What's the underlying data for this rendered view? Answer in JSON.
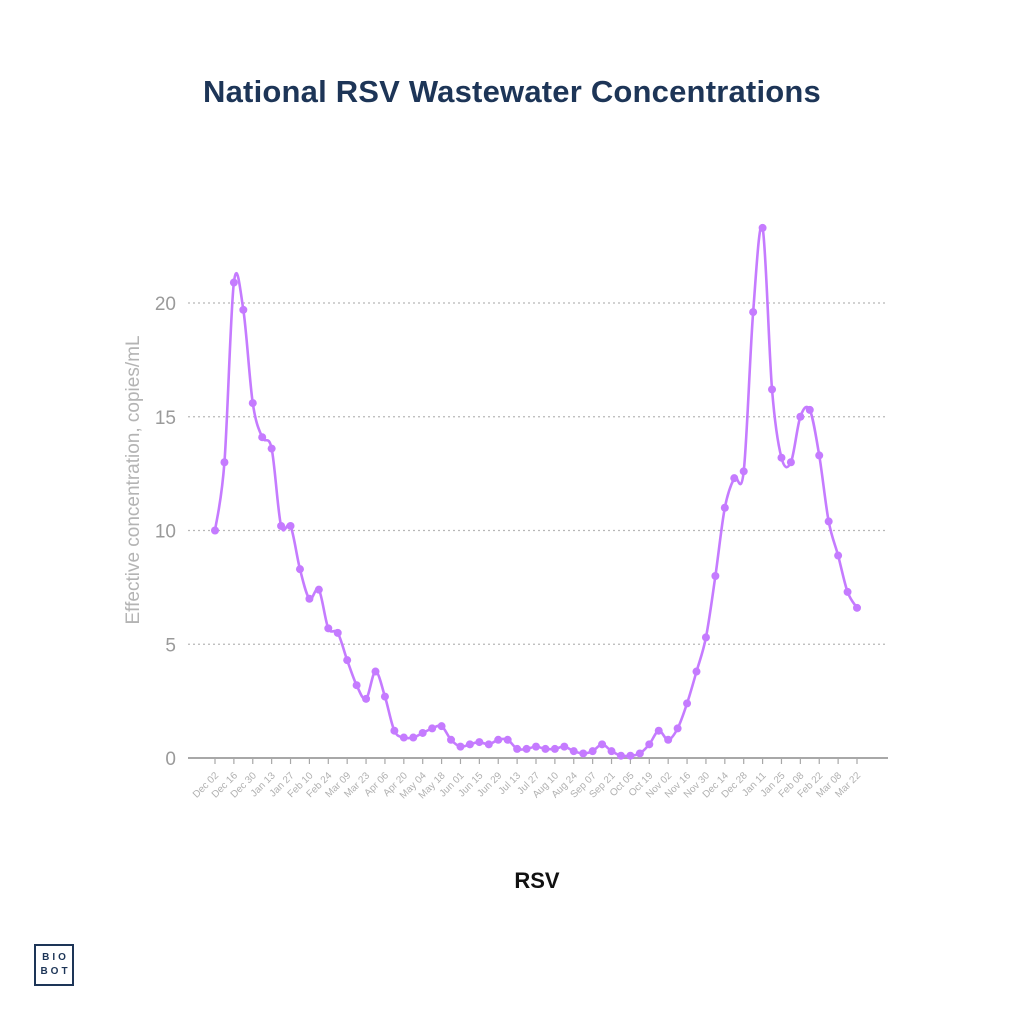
{
  "title": "National RSV Wastewater Concentrations",
  "logo": {
    "line1": "BIO",
    "line2": "BOT"
  },
  "chart_data": {
    "type": "line",
    "title": "National RSV Wastewater Concentrations",
    "xlabel": "RSV",
    "ylabel": "Effective concentration, copies/mL",
    "ylim": [
      0,
      23.3
    ],
    "yticks": [
      0,
      5,
      10,
      15,
      20
    ],
    "grid": "horizontal dotted",
    "color": "#c57bff",
    "x_tick_labels": [
      "Dec 02",
      "Dec 16",
      "Dec 30",
      "Jan 13",
      "Jan 27",
      "Feb 10",
      "Feb 24",
      "Mar 09",
      "Mar 23",
      "Apr 06",
      "Apr 20",
      "May 04",
      "May 18",
      "Jun 01",
      "Jun 15",
      "Jun 29",
      "Jul 13",
      "Jul 27",
      "Aug 10",
      "Aug 24",
      "Sep 07",
      "Sep 21",
      "Oct 05",
      "Oct 19",
      "Nov 02",
      "Nov 16",
      "Nov 30",
      "Dec 14",
      "Dec 28",
      "Jan 11",
      "Jan 25",
      "Feb 08",
      "Feb 22",
      "Mar 08",
      "Mar 22"
    ],
    "series": [
      {
        "values": [
          10.0,
          13.0,
          20.9,
          19.7,
          15.6,
          14.1,
          13.6,
          10.2,
          10.2,
          8.3,
          7.0,
          7.4,
          5.7,
          5.5,
          4.3,
          3.2,
          2.6,
          3.8,
          2.7,
          1.2,
          0.9,
          0.9,
          1.1,
          1.3,
          1.4,
          0.8,
          0.5,
          0.6,
          0.7,
          0.6,
          0.8,
          0.8,
          0.4,
          0.4,
          0.5,
          0.4,
          0.4,
          0.5,
          0.3,
          0.2,
          0.3,
          0.6,
          0.3,
          0.1,
          0.1,
          0.2,
          0.6,
          1.2,
          0.8,
          1.3,
          2.4,
          3.8,
          5.3,
          8.0,
          11.0,
          12.3,
          12.6,
          19.6,
          23.3,
          16.2,
          13.2,
          13.0,
          15.0,
          15.3,
          13.3,
          10.4,
          8.9,
          7.3,
          6.6
        ]
      }
    ]
  }
}
